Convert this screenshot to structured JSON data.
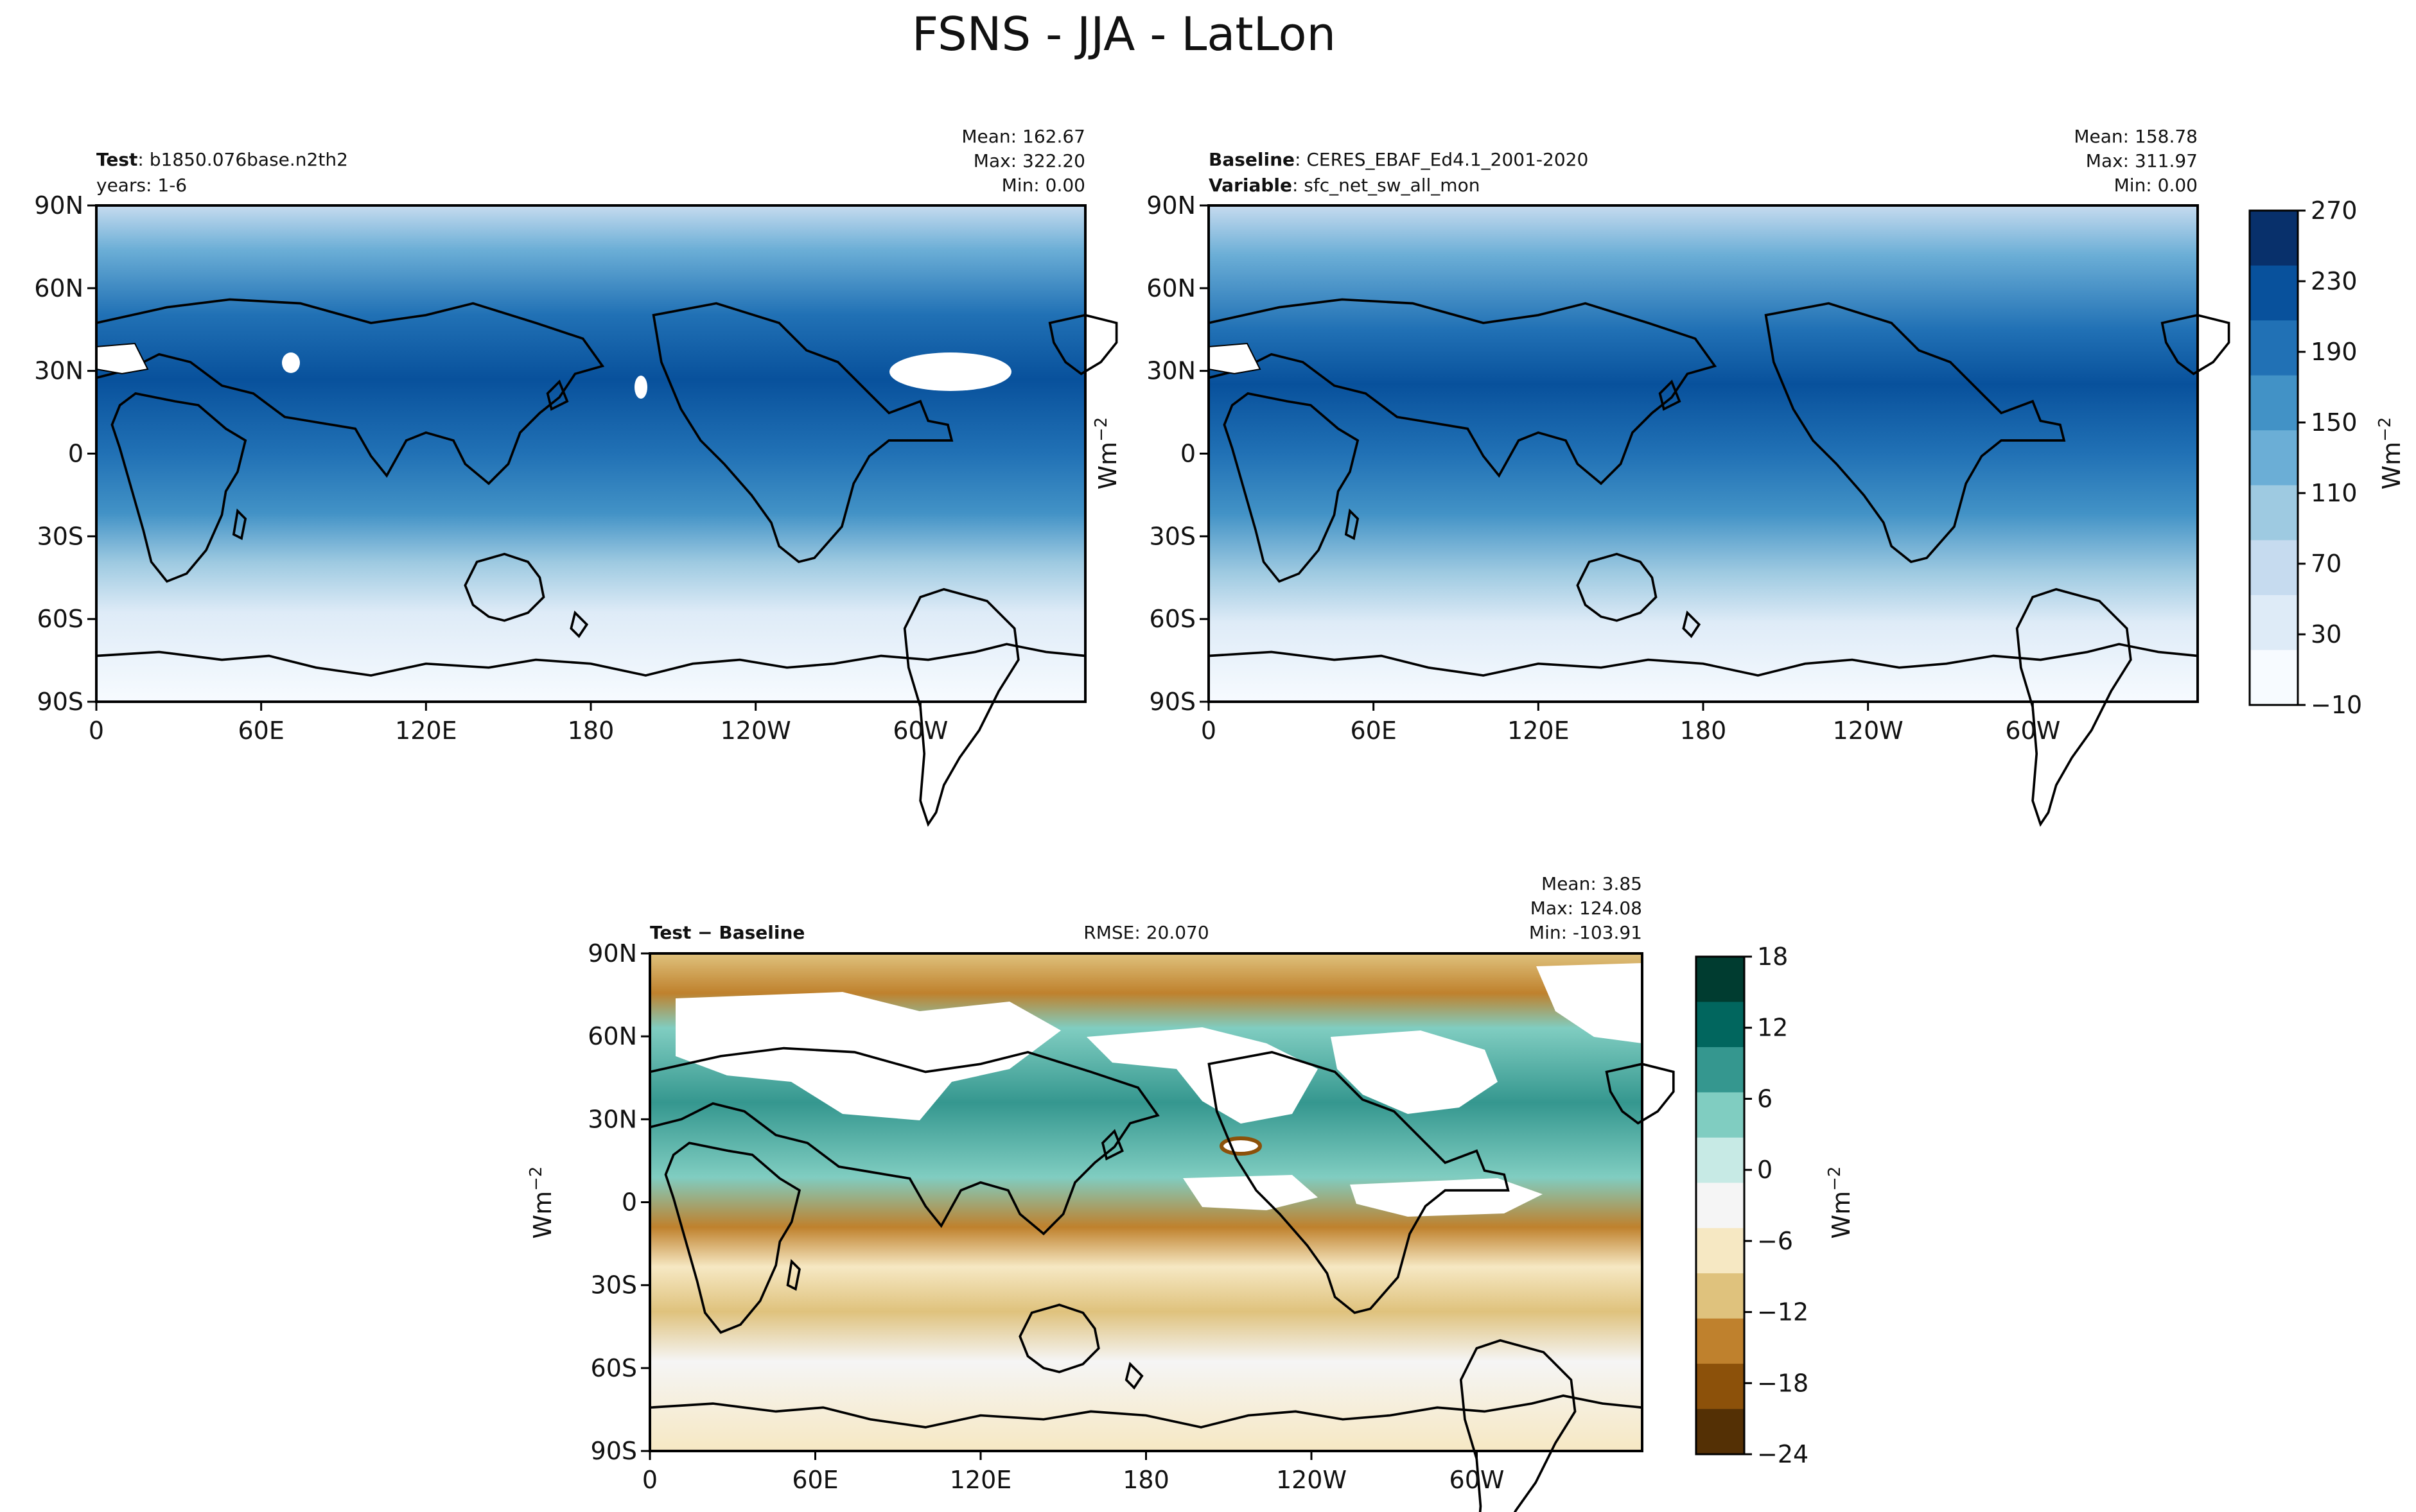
{
  "figure": {
    "title": "FSNS - JJA - LatLon"
  },
  "colors": {
    "continuous_cmap": [
      "#f7fbff",
      "#deebf7",
      "#c6dbef",
      "#9ecae1",
      "#6baed6",
      "#4292c6",
      "#2171b5",
      "#08519c",
      "#08306b"
    ],
    "diff_cmap": [
      "#543005",
      "#8c510a",
      "#bf812d",
      "#dfc27d",
      "#f6e8c3",
      "#f5f5f5",
      "#c7eae5",
      "#80cdc1",
      "#35978f",
      "#01665e",
      "#003c30"
    ],
    "coast": "#000000",
    "missing": "#ffffff"
  },
  "chart_data": [
    {
      "type": "heatmap",
      "panel": "test",
      "label_bold": "Test",
      "label_text": ": b1850.076base.n2th2",
      "sub_text": "years: 1-6",
      "stats": [
        "Mean: 162.67",
        "Max: 322.20",
        "Min:  0.00"
      ],
      "xticks": [
        "0",
        "60E",
        "120E",
        "180",
        "120W",
        "60W"
      ],
      "yticks": [
        "90N",
        "60N",
        "30N",
        "0",
        "30S",
        "60S",
        "90S"
      ],
      "xlim": [
        0,
        360
      ],
      "ylim": [
        -90,
        90
      ],
      "color_range": [
        -10,
        290
      ]
    },
    {
      "type": "heatmap",
      "panel": "baseline",
      "label_bold": "Baseline",
      "label_text": ": CERES_EBAF_Ed4.1_2001-2020",
      "sub_bold": "Variable",
      "sub_text": ": sfc_net_sw_all_mon",
      "stats": [
        "Mean: 158.78",
        "Max: 311.97",
        "Min:  0.00"
      ],
      "xticks": [
        "0",
        "60E",
        "120E",
        "180",
        "120W",
        "60W"
      ],
      "yticks": [
        "90N",
        "60N",
        "30N",
        "0",
        "30S",
        "60S",
        "90S"
      ],
      "xlim": [
        0,
        360
      ],
      "ylim": [
        -90,
        90
      ],
      "ylabel": "Wm",
      "ylabel_exp": "−2",
      "colorbar": {
        "ticks": [
          "270",
          "230",
          "190",
          "150",
          "110",
          "70",
          "30",
          "−10"
        ],
        "label": "Wm",
        "label_exp": "−2",
        "range": [
          -10,
          290
        ]
      }
    },
    {
      "type": "heatmap",
      "panel": "difference",
      "label_bold": "Test − Baseline",
      "rmse": "RMSE: 20.070",
      "stats": [
        "Mean:  3.85",
        "Max: 124.08",
        "Min: -103.91"
      ],
      "xticks": [
        "0",
        "60E",
        "120E",
        "180",
        "120W",
        "60W"
      ],
      "yticks": [
        "90N",
        "60N",
        "30N",
        "0",
        "30S",
        "60S",
        "90S"
      ],
      "xlim": [
        0,
        360
      ],
      "ylim": [
        -90,
        90
      ],
      "ylabel": "Wm",
      "ylabel_exp": "−2",
      "colorbar": {
        "ticks": [
          "18",
          "12",
          "6",
          "0",
          "−6",
          "−12",
          "−18",
          "−24"
        ],
        "label": "Wm",
        "label_exp": "−2",
        "range": [
          -24,
          21
        ]
      }
    }
  ]
}
